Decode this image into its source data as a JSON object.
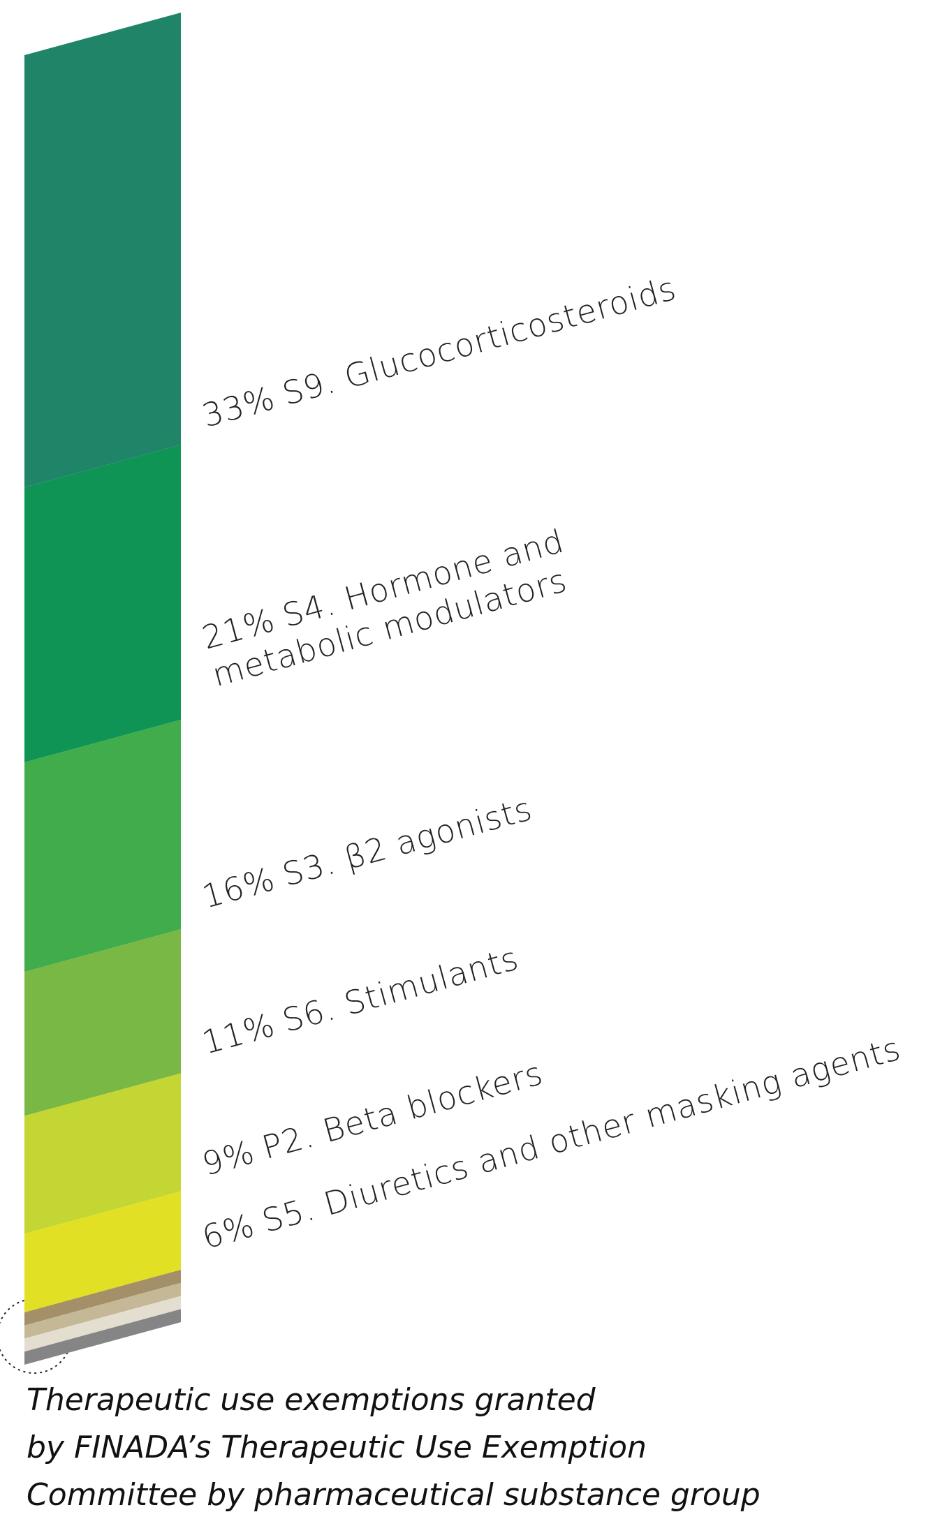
{
  "chart_data": {
    "type": "stacked-bar",
    "title": [
      "Therapeutic use exemptions granted",
      "by FINADA’s Therapeutic Use Exemption",
      "Committee by pharmaceutical substance group"
    ],
    "categories": [
      [
        "S9. Glucocorticosteroids"
      ],
      [
        "S4. Hormone and",
        "metabolic modulators"
      ],
      [
        "S3. β2 agonists"
      ],
      [
        "S6. Stimulants"
      ],
      [
        "P2. Beta blockers"
      ],
      [
        "S5. Diuretics and other masking agents"
      ],
      null,
      null,
      null,
      null
    ],
    "values": [
      33,
      21,
      16,
      11,
      9,
      6,
      1,
      1,
      1,
      1
    ],
    "value_labels": [
      "33%",
      "21%",
      "16%",
      "11%",
      "9%",
      "6%",
      null,
      null,
      null,
      null
    ],
    "colors": [
      "#1f8468",
      "#109455",
      "#41ac4c",
      "#7ab845",
      "#c3d633",
      "#e2e025",
      "#a39068",
      "#c5b897",
      "#e4ded0",
      "#858585"
    ],
    "ylim": [
      0,
      100
    ]
  }
}
